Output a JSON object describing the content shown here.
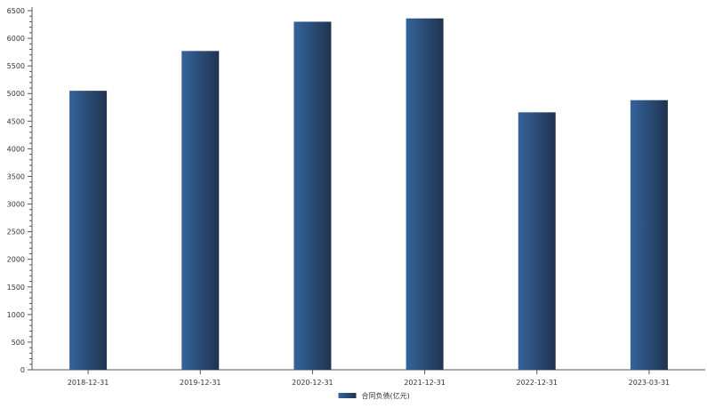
{
  "chart_data": {
    "type": "bar",
    "categories": [
      "2018-12-31",
      "2019-12-31",
      "2020-12-31",
      "2021-12-31",
      "2022-12-31",
      "2023-03-31"
    ],
    "series": [
      {
        "name": "合同负债(亿元)",
        "values": [
          5050,
          5770,
          6300,
          6360,
          4660,
          4880
        ]
      }
    ],
    "yticks": [
      0,
      500,
      1000,
      1500,
      2000,
      2500,
      3000,
      3500,
      4000,
      4500,
      5000,
      5500,
      6000,
      6500
    ],
    "ylim": [
      0,
      6500
    ],
    "grid": false,
    "legend_position": "bottom-center",
    "colors": {
      "bar_light": "#35649b",
      "bar_dark": "#1f3350",
      "axis": "#555555",
      "text": "#333333"
    }
  }
}
